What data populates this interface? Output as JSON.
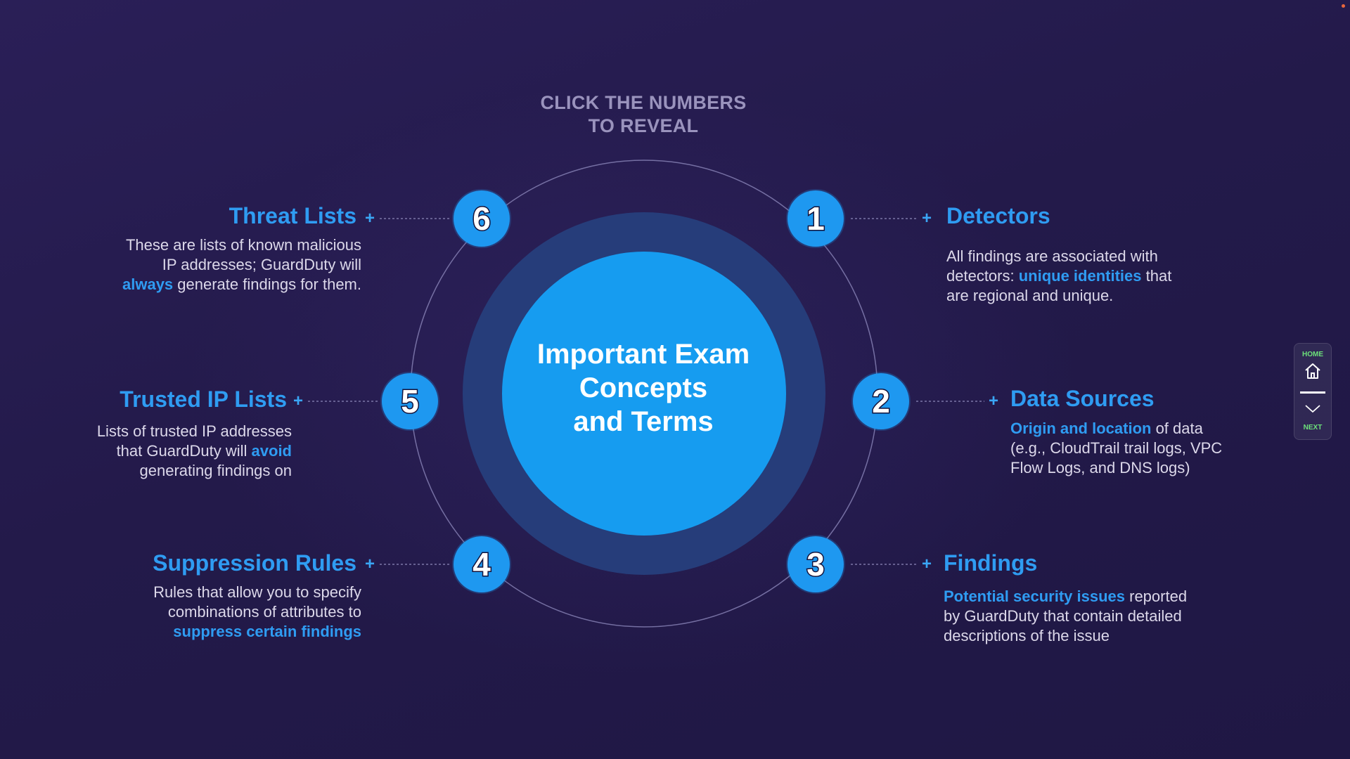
{
  "instruction": {
    "line1": "CLICK THE NUMBERS",
    "line2": "TO REVEAL"
  },
  "center": {
    "line1": "Important Exam",
    "line2": "Concepts",
    "line3": "and Terms"
  },
  "items": [
    {
      "number": "1",
      "title": "Detectors",
      "desc": [
        "All findings are associated with",
        "detectors: ",
        "unique identities",
        " that",
        "are regional and unique."
      ]
    },
    {
      "number": "2",
      "title": "Data Sources",
      "desc": [
        "Origin and location",
        " of data",
        "(e.g., CloudTrail trail logs, VPC",
        "Flow Logs, and DNS logs)"
      ]
    },
    {
      "number": "3",
      "title": "Findings",
      "desc": [
        "Potential security issues",
        " reported",
        "by GuardDuty that contain detailed",
        "descriptions of the issue"
      ]
    },
    {
      "number": "4",
      "title": "Suppression Rules",
      "desc": [
        "Rules that allow you to specify",
        "combinations of attributes to",
        "suppress certain findings"
      ]
    },
    {
      "number": "5",
      "title": "Trusted IP Lists",
      "desc": [
        "Lists of trusted IP addresses",
        "that GuardDuty will ",
        "avoid",
        "generating findings on"
      ]
    },
    {
      "number": "6",
      "title": "Threat Lists",
      "desc": [
        "These are lists of known malicious",
        "IP addresses; GuardDuty will",
        "always",
        " generate findings for them."
      ]
    }
  ],
  "plus_symbol": "+",
  "nav": {
    "home_label": "HOME",
    "next_label": "NEXT",
    "home_icon": "home-icon",
    "next_icon": "chevron-down-icon"
  },
  "colors": {
    "accent": "#2f9cf2",
    "number_fill": "#1e98f0",
    "inner_circle": "#169cf0",
    "outer_ring": "#263d7a",
    "nav_label": "#6ce07a"
  }
}
